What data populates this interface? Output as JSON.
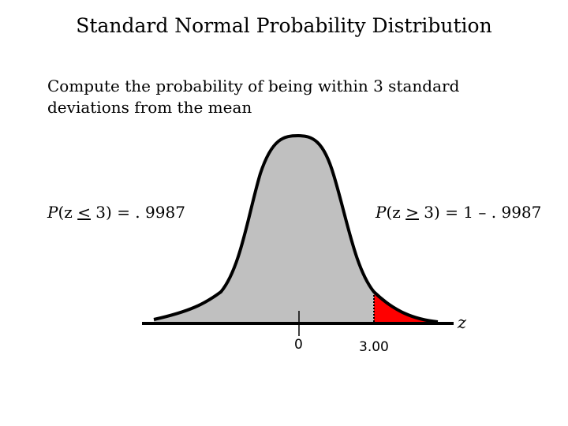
{
  "title": "Standard Normal Probability Distribution",
  "subtitle": "Compute the probability of being within 3 standard deviations from the mean",
  "left_prob": {
    "p": "P",
    "open": "(",
    "var": "z",
    "op": "<",
    "rest": " 3) = . 9987"
  },
  "right_prob": {
    "p": "P",
    "open": "(",
    "var": "z",
    "op": ">",
    "rest": " 3) = 1 – . 9987"
  },
  "axis": {
    "variable": "z",
    "ticks": [
      "0",
      "3.00"
    ]
  },
  "colors": {
    "curve_fill": "#c0c0c0",
    "tail_fill": "#ff0000",
    "line": "#000000"
  }
}
